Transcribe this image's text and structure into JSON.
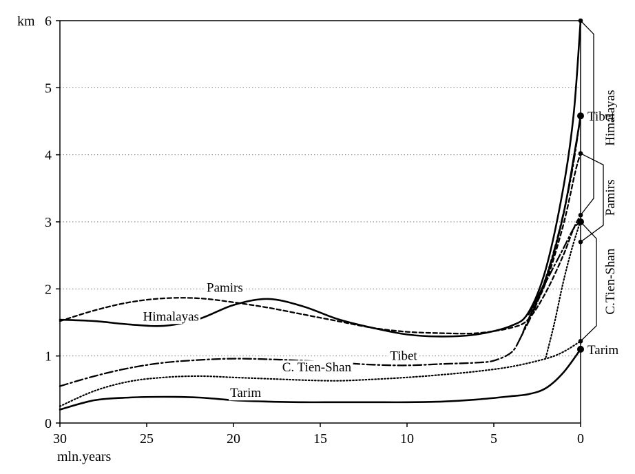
{
  "chart_data": {
    "type": "line",
    "y_unit": "km",
    "xlabel": "mln.years",
    "xlim": [
      30,
      0
    ],
    "ylim": [
      0,
      6
    ],
    "x_ticks": [
      30,
      25,
      20,
      15,
      10,
      5,
      0
    ],
    "y_ticks": [
      0,
      1,
      2,
      3,
      4,
      5,
      6
    ],
    "grid": "horizontal dotted",
    "series": [
      {
        "name": "Himalayas",
        "style": "solid",
        "points": [
          [
            30,
            1.54
          ],
          [
            28,
            1.52
          ],
          [
            26,
            1.47
          ],
          [
            24,
            1.45
          ],
          [
            22,
            1.55
          ],
          [
            20,
            1.76
          ],
          [
            18,
            1.85
          ],
          [
            16,
            1.74
          ],
          [
            14,
            1.55
          ],
          [
            12,
            1.42
          ],
          [
            10,
            1.32
          ],
          [
            8,
            1.29
          ],
          [
            6,
            1.32
          ],
          [
            4,
            1.45
          ],
          [
            3,
            1.65
          ],
          [
            2,
            2.3
          ],
          [
            1,
            3.5
          ],
          [
            0.4,
            4.6
          ],
          [
            0,
            6.0
          ]
        ]
      },
      {
        "name": "Himalayas",
        "style": "solid",
        "points": [
          [
            3,
            1.62
          ],
          [
            2,
            2.15
          ],
          [
            1,
            3.1
          ],
          [
            0.3,
            4.1
          ],
          [
            0,
            4.58
          ]
        ]
      },
      {
        "name": "Pamirs",
        "style": "dashed",
        "points": [
          [
            30,
            1.52
          ],
          [
            28,
            1.68
          ],
          [
            26,
            1.8
          ],
          [
            24,
            1.86
          ],
          [
            22,
            1.86
          ],
          [
            20,
            1.8
          ],
          [
            18,
            1.72
          ],
          [
            16,
            1.62
          ],
          [
            14,
            1.52
          ],
          [
            12,
            1.42
          ],
          [
            10,
            1.36
          ],
          [
            8,
            1.34
          ],
          [
            6,
            1.34
          ],
          [
            4,
            1.42
          ],
          [
            3,
            1.55
          ],
          [
            2,
            1.95
          ],
          [
            1,
            2.5
          ],
          [
            0.4,
            2.9
          ],
          [
            0,
            3.1
          ]
        ]
      },
      {
        "name": "Pamirs",
        "style": "dashed",
        "points": [
          [
            3,
            1.55
          ],
          [
            2,
            2.1
          ],
          [
            1,
            2.95
          ],
          [
            0.3,
            3.75
          ],
          [
            0,
            4.02
          ]
        ]
      },
      {
        "name": "Tibet",
        "style": "dashdot",
        "points": [
          [
            30,
            0.55
          ],
          [
            28,
            0.7
          ],
          [
            26,
            0.82
          ],
          [
            24,
            0.9
          ],
          [
            22,
            0.94
          ],
          [
            20,
            0.96
          ],
          [
            18,
            0.95
          ],
          [
            16,
            0.93
          ],
          [
            14,
            0.9
          ],
          [
            12,
            0.87
          ],
          [
            10,
            0.86
          ],
          [
            8,
            0.88
          ],
          [
            6,
            0.9
          ],
          [
            5,
            0.93
          ],
          [
            4,
            1.05
          ],
          [
            3.5,
            1.25
          ],
          [
            3,
            1.55
          ],
          [
            2,
            2.1
          ],
          [
            1,
            2.6
          ],
          [
            0.4,
            2.9
          ],
          [
            0,
            3.0
          ]
        ]
      },
      {
        "name": "Tibet",
        "style": "dashdot",
        "points": [
          [
            3.5,
            1.25
          ],
          [
            2.5,
            1.8
          ],
          [
            1.5,
            2.6
          ],
          [
            0.6,
            3.6
          ],
          [
            0,
            4.58
          ]
        ]
      },
      {
        "name": "C. Tien-Shan",
        "style": "dotted",
        "points": [
          [
            30,
            0.25
          ],
          [
            28,
            0.48
          ],
          [
            26,
            0.62
          ],
          [
            24,
            0.68
          ],
          [
            22,
            0.7
          ],
          [
            20,
            0.68
          ],
          [
            18,
            0.66
          ],
          [
            16,
            0.64
          ],
          [
            14,
            0.63
          ],
          [
            12,
            0.65
          ],
          [
            10,
            0.68
          ],
          [
            8,
            0.72
          ],
          [
            6,
            0.77
          ],
          [
            4,
            0.84
          ],
          [
            2,
            0.96
          ],
          [
            1,
            1.06
          ],
          [
            0,
            1.22
          ]
        ]
      },
      {
        "name": "C. Tien-Shan",
        "style": "dotted",
        "points": [
          [
            2,
            0.98
          ],
          [
            1.5,
            1.5
          ],
          [
            1,
            2.1
          ],
          [
            0.5,
            2.6
          ],
          [
            0,
            3.02
          ]
        ]
      },
      {
        "name": "Tarim",
        "style": "solid",
        "points": [
          [
            30,
            0.2
          ],
          [
            28,
            0.34
          ],
          [
            26,
            0.38
          ],
          [
            24,
            0.39
          ],
          [
            22,
            0.38
          ],
          [
            20,
            0.34
          ],
          [
            18,
            0.32
          ],
          [
            16,
            0.31
          ],
          [
            14,
            0.31
          ],
          [
            12,
            0.31
          ],
          [
            10,
            0.31
          ],
          [
            8,
            0.32
          ],
          [
            6,
            0.35
          ],
          [
            4,
            0.4
          ],
          [
            3,
            0.43
          ],
          [
            2,
            0.52
          ],
          [
            1,
            0.75
          ],
          [
            0,
            1.1
          ]
        ]
      }
    ],
    "end_points": [
      {
        "y": 6.0,
        "size": "small"
      },
      {
        "y": 4.58,
        "size": "large"
      },
      {
        "y": 4.02,
        "size": "small"
      },
      {
        "y": 3.1,
        "size": "small"
      },
      {
        "y": 3.0,
        "size": "large"
      },
      {
        "y": 2.7,
        "size": "small"
      },
      {
        "y": 1.22,
        "size": "small"
      },
      {
        "y": 1.1,
        "size": "large"
      }
    ],
    "inline_labels": [
      {
        "text": "Pamirs",
        "x": 20.5,
        "y": 2.03
      },
      {
        "text": "Himalayas",
        "x": 23.6,
        "y": 1.6
      },
      {
        "text": "Tibet",
        "x": 10.2,
        "y": 1.01
      },
      {
        "text": "C. Tien-Shan",
        "x": 15.2,
        "y": 0.84
      },
      {
        "text": "Tarim",
        "x": 19.3,
        "y": 0.46
      }
    ],
    "right_labels": [
      {
        "text": "Himalayas",
        "rotated": true,
        "range": [
          3.1,
          6.0
        ]
      },
      {
        "text": "Tibet",
        "rotated": false,
        "y": 4.58
      },
      {
        "text": "Pamirs",
        "rotated": true,
        "range": [
          2.7,
          4.02
        ]
      },
      {
        "text": "C.Tien-Shan",
        "rotated": true,
        "range": [
          1.22,
          3.0
        ]
      },
      {
        "text": "Tarim",
        "rotated": false,
        "y": 1.1
      }
    ]
  }
}
